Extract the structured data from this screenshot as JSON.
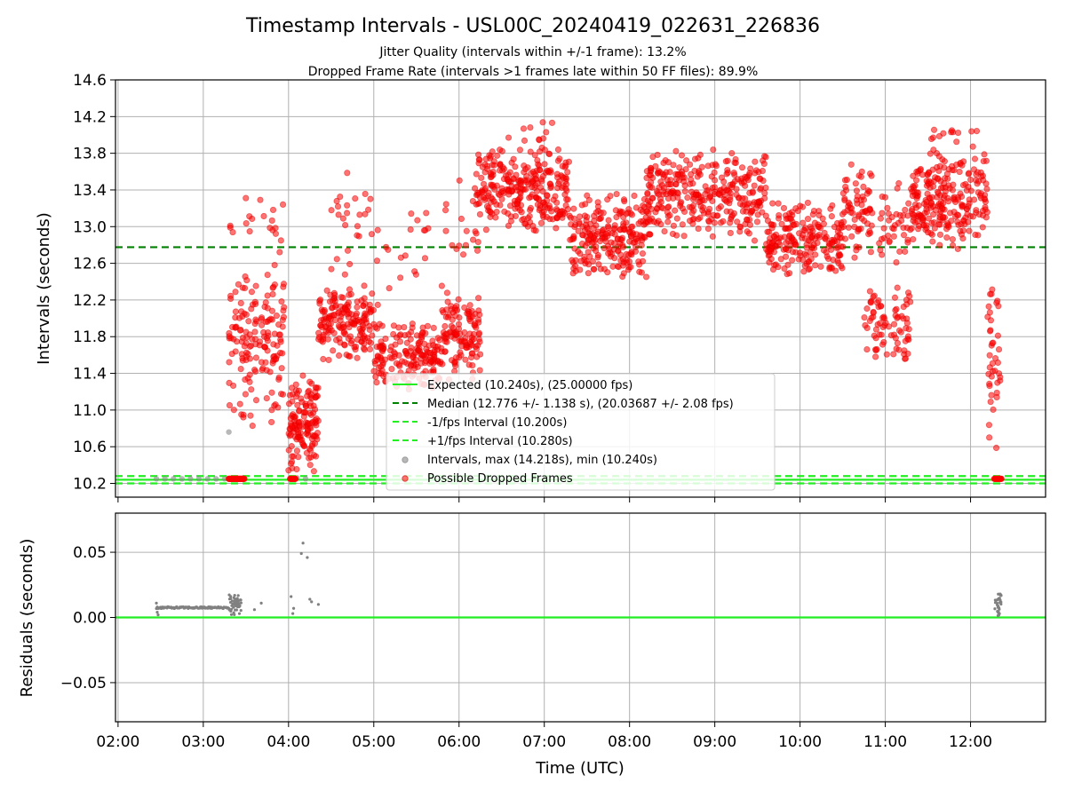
{
  "figure": {
    "title": "Timestamp Intervals - USL00C_20240419_022631_226836",
    "subtitle_1": "Jitter Quality (intervals within +/-1 frame): 13.2%",
    "subtitle_2": "Dropped Frame Rate (intervals >1 frames late within 50 FF files): 89.9%"
  },
  "chart_data": [
    {
      "type": "scatter",
      "panel": "intervals",
      "title": "",
      "xlabel": "",
      "ylabel": "Intervals (seconds)",
      "xlim_hours": [
        1.97,
        12.88
      ],
      "ylim": [
        10.05,
        14.6
      ],
      "yticks": [
        10.2,
        10.6,
        11.0,
        11.4,
        11.8,
        12.2,
        12.6,
        13.0,
        13.4,
        13.8,
        14.2,
        14.6
      ],
      "ytick_labels": [
        "10.2",
        "10.6",
        "11.0",
        "11.4",
        "11.8",
        "12.2",
        "12.6",
        "13.0",
        "13.4",
        "13.8",
        "14.2",
        "14.6"
      ],
      "grid": true,
      "legend_placement": "lower-center",
      "reference_lines": [
        {
          "name": "Expected (10.240s), (25.00000 fps)",
          "y": 10.24,
          "style": "solid",
          "color": "#22ee22"
        },
        {
          "name": "Median (12.776 +/- 1.138 s), (20.03687 +/- 2.08 fps)",
          "y": 12.776,
          "style": "dashed",
          "color": "#008000"
        },
        {
          "name": "-1/fps Interval (10.200s)",
          "y": 10.2,
          "style": "dashed",
          "color": "#22ee22"
        },
        {
          "name": "+1/fps Interval (10.280s)",
          "y": 10.28,
          "style": "dashed",
          "color": "#22ee22"
        }
      ],
      "series": [
        {
          "name": "Intervals, max (14.218s), min (10.240s)",
          "color": "#888888",
          "x": [
            2.45,
            2.55,
            2.65,
            2.75,
            2.85,
            2.95,
            3.05,
            3.15,
            3.25,
            3.3,
            3.3,
            3.4,
            3.45,
            4.05,
            4.1,
            4.2,
            12.3,
            12.35
          ],
          "y": [
            10.25,
            10.25,
            10.25,
            10.25,
            10.25,
            10.25,
            10.25,
            10.25,
            10.25,
            10.76,
            10.25,
            10.25,
            10.25,
            10.25,
            10.26,
            10.25,
            10.25,
            10.25
          ]
        },
        {
          "name": "Possible Dropped Frames",
          "color": "#ff0000",
          "segments": [
            {
              "x0": 3.3,
              "x1": 3.95,
              "lo": 10.7,
              "hi": 12.8,
              "n": 160
            },
            {
              "x0": 3.3,
              "x1": 3.95,
              "lo": 12.8,
              "hi": 13.4,
              "n": 18
            },
            {
              "x0": 4.0,
              "x1": 4.35,
              "lo": 10.3,
              "hi": 11.4,
              "n": 140
            },
            {
              "x0": 4.35,
              "x1": 5.0,
              "lo": 11.5,
              "hi": 12.4,
              "n": 170
            },
            {
              "x0": 4.5,
              "x1": 5.0,
              "lo": 12.4,
              "hi": 13.8,
              "n": 25
            },
            {
              "x0": 5.0,
              "x1": 5.8,
              "lo": 11.2,
              "hi": 12.0,
              "n": 180
            },
            {
              "x0": 5.0,
              "x1": 5.8,
              "lo": 12.0,
              "hi": 13.3,
              "n": 20
            },
            {
              "x0": 5.8,
              "x1": 6.25,
              "lo": 11.3,
              "hi": 12.3,
              "n": 120
            },
            {
              "x0": 5.8,
              "x1": 6.25,
              "lo": 12.3,
              "hi": 13.6,
              "n": 18
            },
            {
              "x0": 6.2,
              "x1": 7.3,
              "lo": 12.9,
              "hi": 13.9,
              "n": 290
            },
            {
              "x0": 6.5,
              "x1": 7.1,
              "lo": 13.9,
              "hi": 14.22,
              "n": 10
            },
            {
              "x0": 7.3,
              "x1": 8.2,
              "lo": 12.4,
              "hi": 13.4,
              "n": 230
            },
            {
              "x0": 8.2,
              "x1": 9.6,
              "lo": 12.8,
              "hi": 13.9,
              "n": 330
            },
            {
              "x0": 9.6,
              "x1": 10.5,
              "lo": 12.4,
              "hi": 13.3,
              "n": 210
            },
            {
              "x0": 10.5,
              "x1": 10.85,
              "lo": 12.6,
              "hi": 13.7,
              "n": 70
            },
            {
              "x0": 10.75,
              "x1": 11.3,
              "lo": 11.5,
              "hi": 12.4,
              "n": 80
            },
            {
              "x0": 10.9,
              "x1": 11.3,
              "lo": 12.6,
              "hi": 13.5,
              "n": 40
            },
            {
              "x0": 11.3,
              "x1": 12.2,
              "lo": 12.7,
              "hi": 13.9,
              "n": 250
            },
            {
              "x0": 11.5,
              "x1": 12.1,
              "lo": 13.9,
              "hi": 14.12,
              "n": 12
            },
            {
              "x0": 12.2,
              "x1": 12.35,
              "lo": 10.55,
              "hi": 12.7,
              "n": 40
            }
          ],
          "baseline_points": [
            {
              "x0": 3.3,
              "x1": 3.48,
              "y": 10.25,
              "n": 22
            },
            {
              "x0": 4.02,
              "x1": 4.08,
              "y": 10.25,
              "n": 6
            },
            {
              "x0": 12.28,
              "x1": 12.36,
              "y": 10.25,
              "n": 8
            }
          ]
        }
      ]
    },
    {
      "type": "scatter",
      "panel": "residuals",
      "title": "",
      "xlabel": "Time (UTC)",
      "ylabel": "Residuals (seconds)",
      "xlim_hours": [
        1.97,
        12.88
      ],
      "ylim": [
        -0.08,
        0.08
      ],
      "yticks": [
        -0.05,
        0.0,
        0.05
      ],
      "ytick_labels": [
        "−0.05",
        "0.00",
        "0.05"
      ],
      "xticks_hours": [
        2,
        3,
        4,
        5,
        6,
        7,
        8,
        9,
        10,
        11,
        12
      ],
      "xtick_labels": [
        "02:00",
        "03:00",
        "04:00",
        "05:00",
        "06:00",
        "07:00",
        "08:00",
        "09:00",
        "10:00",
        "11:00",
        "12:00"
      ],
      "grid": true,
      "zero_line_color": "#22ee22",
      "series": [
        {
          "name": "",
          "color": "#808080",
          "band": {
            "x0": 2.45,
            "x1": 3.3,
            "y": 0.0075,
            "n": 90
          },
          "clusters": [
            {
              "x0": 3.3,
              "x1": 3.45,
              "lo": 0.002,
              "hi": 0.018,
              "n": 50
            },
            {
              "x0": 12.28,
              "x1": 12.36,
              "lo": 0.001,
              "hi": 0.018,
              "n": 30
            }
          ],
          "x": [
            2.45,
            2.46,
            2.47,
            3.6,
            3.68,
            4.03,
            4.05,
            4.06,
            4.15,
            4.17,
            4.22,
            4.25,
            4.27,
            4.35
          ],
          "y": [
            0.011,
            0.004,
            0.002,
            0.006,
            0.011,
            0.016,
            0.003,
            0.007,
            0.049,
            0.057,
            0.046,
            0.014,
            0.012,
            0.01
          ]
        }
      ]
    }
  ]
}
